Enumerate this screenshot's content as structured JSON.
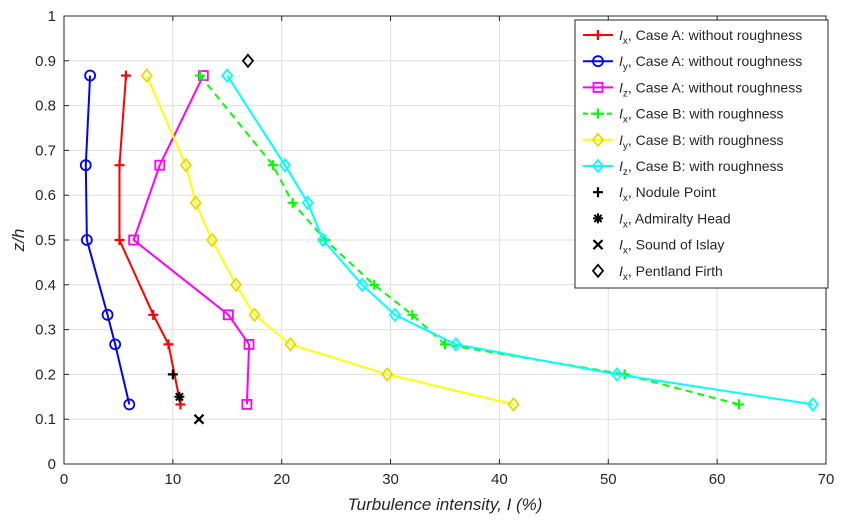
{
  "chart_data": {
    "type": "line",
    "xlabel": "Turbulence intensity, I (%)",
    "ylabel": "z/h",
    "xlim": [
      0,
      70
    ],
    "ylim": [
      0,
      1
    ],
    "xticks": [
      0,
      10,
      20,
      30,
      40,
      50,
      60,
      70
    ],
    "yticks": [
      0,
      0.1,
      0.2,
      0.3,
      0.4,
      0.5,
      0.6,
      0.7,
      0.8,
      0.9,
      1
    ],
    "xtick_labels": [
      "0",
      "10",
      "20",
      "30",
      "40",
      "50",
      "60",
      "70"
    ],
    "ytick_labels": [
      "0",
      "0.1",
      "0.2",
      "0.3",
      "0.4",
      "0.5",
      "0.6",
      "0.7",
      "0.8",
      "0.9",
      "1"
    ],
    "grid": true,
    "legend_position": "top-right",
    "series": [
      {
        "name": "I_x, Case A: without roughness",
        "legend_var": "I",
        "legend_sub": "x",
        "legend_text": ", Case A: without roughness",
        "color": "#ff0000",
        "marker": "plus",
        "line": "solid",
        "x": [
          10.7,
          9.6,
          8.2,
          5.1,
          5.1,
          5.7
        ],
        "y": [
          0.133,
          0.267,
          0.333,
          0.5,
          0.667,
          0.867
        ]
      },
      {
        "name": "I_y, Case A: without roughness",
        "legend_var": "I",
        "legend_sub": "y",
        "legend_text": ", Case A: without roughness",
        "color": "#0000ff",
        "marker": "circle",
        "line": "solid",
        "x": [
          6.0,
          4.7,
          4.0,
          2.1,
          2.0,
          2.4
        ],
        "y": [
          0.133,
          0.267,
          0.333,
          0.5,
          0.667,
          0.867
        ]
      },
      {
        "name": "I_z, Case A: without roughness",
        "legend_var": "I",
        "legend_sub": "z",
        "legend_text": ", Case A: without roughness",
        "color": "#ff00ff",
        "marker": "square",
        "line": "solid",
        "x": [
          16.8,
          17.0,
          15.1,
          6.4,
          8.8,
          12.8
        ],
        "y": [
          0.133,
          0.267,
          0.333,
          0.5,
          0.667,
          0.867
        ]
      },
      {
        "name": "I_x, Case B: with roughness",
        "legend_var": "I",
        "legend_sub": "x",
        "legend_text": ", Case B: with roughness",
        "color": "#00ff00",
        "marker": "plus",
        "line": "dashed",
        "x": [
          62.0,
          51.5,
          35.0,
          32.0,
          28.5,
          24.0,
          21.0,
          19.2,
          12.5
        ],
        "y": [
          0.133,
          0.2,
          0.267,
          0.333,
          0.4,
          0.5,
          0.583,
          0.667,
          0.867
        ]
      },
      {
        "name": "I_y, Case B: with roughness",
        "legend_var": "I",
        "legend_sub": "y",
        "legend_text": ", Case B: with roughness",
        "color": "#ffff00",
        "marker": "diamond",
        "line": "solid",
        "x": [
          41.3,
          29.7,
          20.8,
          17.5,
          15.8,
          13.6,
          12.1,
          11.2,
          7.6
        ],
        "y": [
          0.133,
          0.2,
          0.267,
          0.333,
          0.4,
          0.5,
          0.583,
          0.667,
          0.867
        ]
      },
      {
        "name": "I_z, Case B: with roughness",
        "legend_var": "I",
        "legend_sub": "z",
        "legend_text": ", Case B: with roughness",
        "color": "#00ffff",
        "marker": "diamond",
        "line": "solid",
        "x": [
          68.8,
          50.8,
          36.0,
          30.4,
          27.4,
          23.8,
          22.4,
          20.3,
          15.0
        ],
        "y": [
          0.133,
          0.2,
          0.267,
          0.333,
          0.4,
          0.5,
          0.583,
          0.667,
          0.867
        ]
      },
      {
        "name": "I_x, Nodule Point",
        "legend_var": "I",
        "legend_sub": "x",
        "legend_text": ", Nodule Point",
        "color": "#000000",
        "marker": "plus",
        "line": "none",
        "x": [
          10.0
        ],
        "y": [
          0.2
        ]
      },
      {
        "name": "I_x, Admiralty Head",
        "legend_var": "I",
        "legend_sub": "x",
        "legend_text": ", Admiralty Head",
        "color": "#000000",
        "marker": "asterisk",
        "line": "none",
        "x": [
          10.6
        ],
        "y": [
          0.15
        ]
      },
      {
        "name": "I_x, Sound of Islay",
        "legend_var": "I",
        "legend_sub": "x",
        "legend_text": ", Sound of Islay",
        "color": "#000000",
        "marker": "cross",
        "line": "none",
        "x": [
          12.4
        ],
        "y": [
          0.1
        ]
      },
      {
        "name": "I_x, Pentland Firth",
        "legend_var": "I",
        "legend_sub": "x",
        "legend_text": ", Pentland Firth",
        "color": "#000000",
        "marker": "diamond",
        "line": "none",
        "x": [
          16.9
        ],
        "y": [
          0.9
        ]
      }
    ]
  }
}
